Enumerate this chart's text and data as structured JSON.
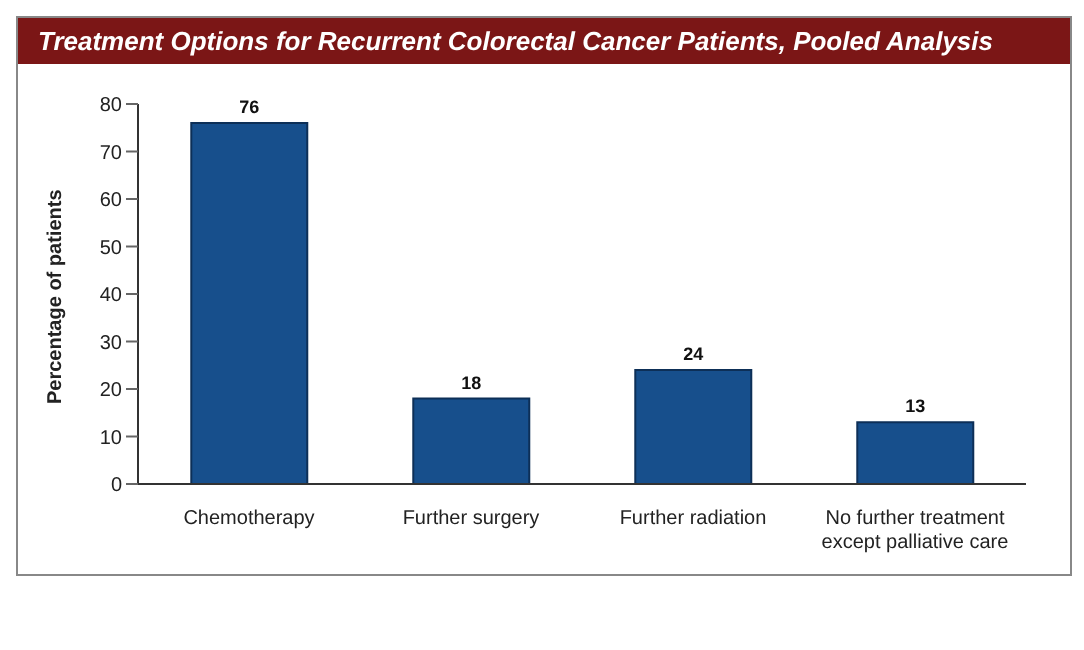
{
  "chart_data": {
    "type": "bar",
    "title": "Treatment Options for Recurrent Colorectal Cancer Patients, Pooled Analysis",
    "ylabel": "Percentage of patients",
    "categories": [
      "Chemotherapy",
      "Further surgery",
      "Further radiation",
      "No further treatment except palliative care"
    ],
    "values": [
      76,
      18,
      24,
      13
    ],
    "color": "#174f8c",
    "ylim": [
      0,
      80
    ],
    "yticks": [
      0,
      10,
      20,
      30,
      40,
      50,
      60,
      70,
      80
    ],
    "data_labels": true
  }
}
